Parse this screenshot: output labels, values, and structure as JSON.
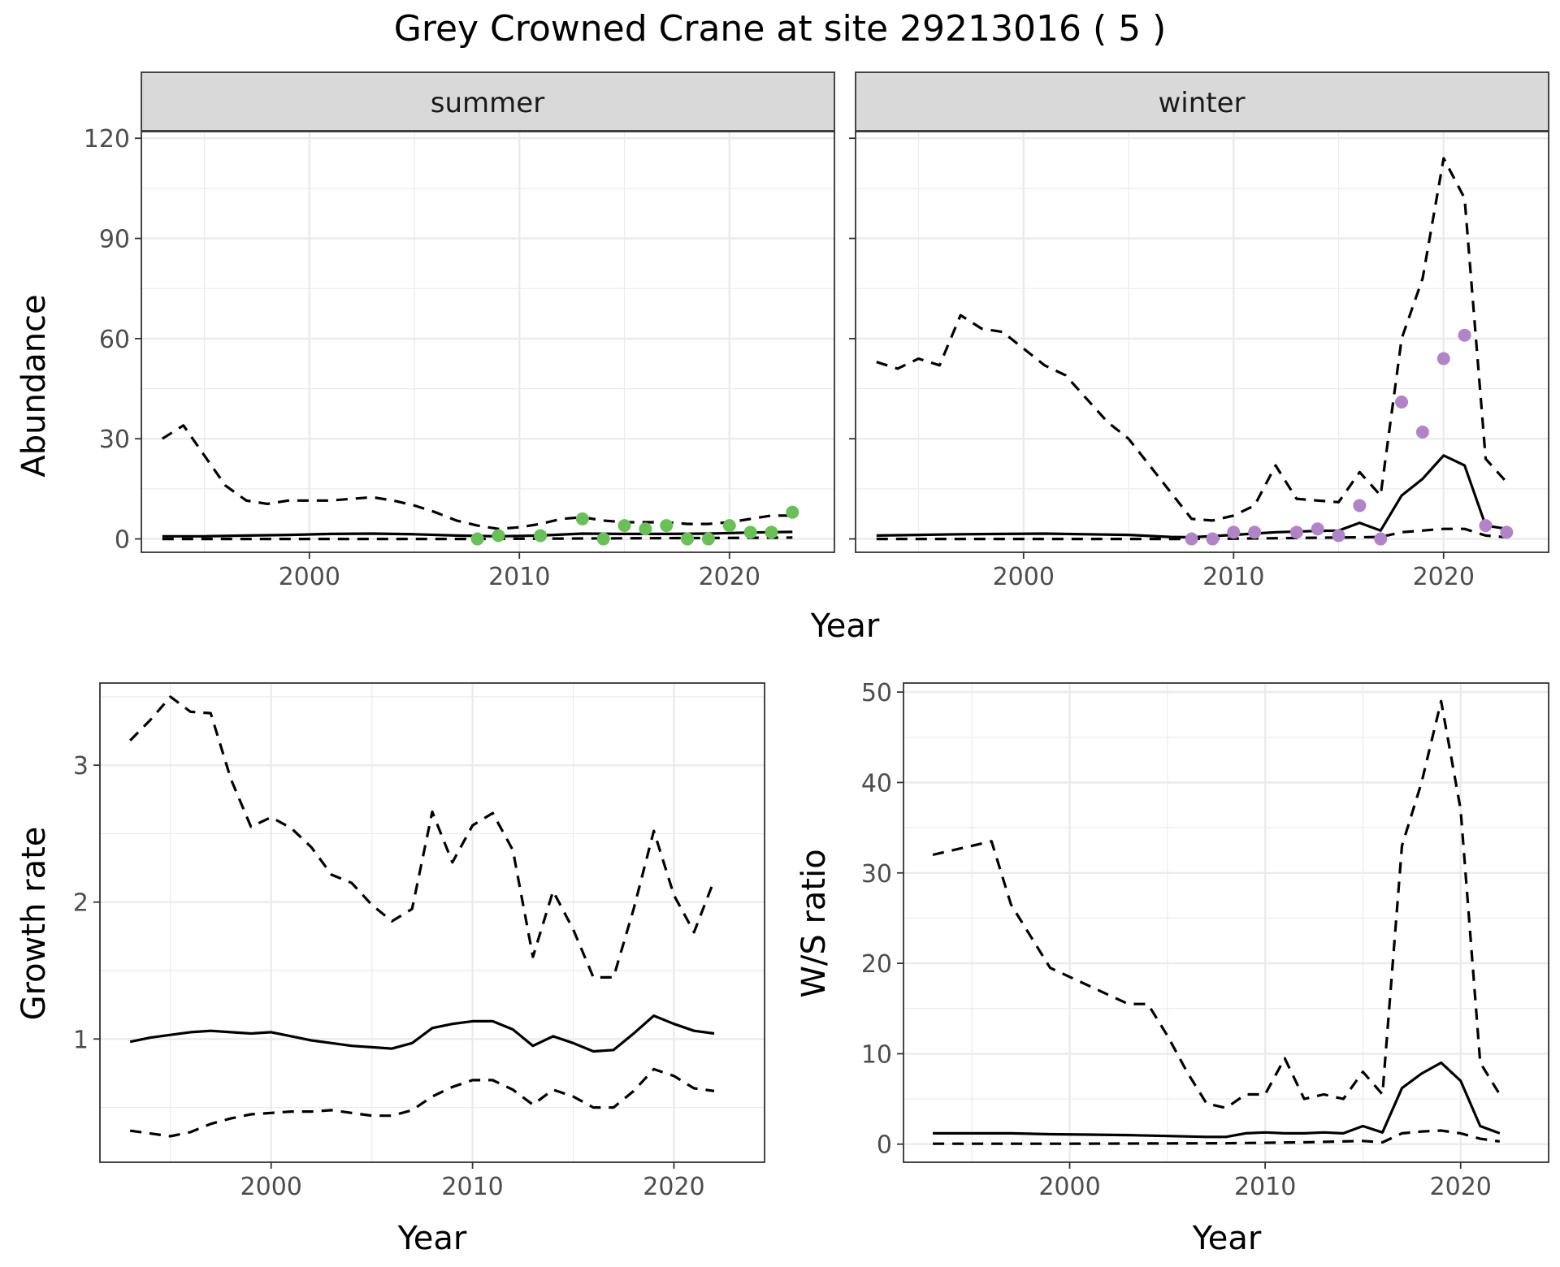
{
  "title": "Grey Crowned Crane at site 29213016 ( 5 )",
  "chart_data": [
    {
      "type": "line",
      "facet_title": "summer",
      "xlabel": "Year",
      "ylabel": "Abundance",
      "xlim": [
        1992,
        2025
      ],
      "ylim": [
        -4,
        122
      ],
      "x_ticks": [
        2000,
        2010,
        2020
      ],
      "y_ticks": [
        0,
        30,
        60,
        90,
        120
      ],
      "x_tick_labels": [
        "2000",
        "2010",
        "2020"
      ],
      "y_tick_labels": [
        "0",
        "30",
        "60",
        "90",
        "120"
      ],
      "grid": true,
      "point_color": "#6abf59",
      "series": [
        {
          "line": "solid",
          "x": [
            1993,
            1995,
            1997,
            1999,
            2001,
            2003,
            2005,
            2007,
            2009,
            2011,
            2013,
            2015,
            2017,
            2019,
            2021,
            2023
          ],
          "y": [
            0.8,
            0.8,
            1,
            1.2,
            1.5,
            1.6,
            1.4,
            1.0,
            0.8,
            1.0,
            1.6,
            1.5,
            1.5,
            1.6,
            1.9,
            2.1
          ]
        },
        {
          "line": "dashed",
          "x": [
            1993,
            1994,
            1995,
            1996,
            1997,
            1998,
            1999,
            2000,
            2001,
            2002,
            2003,
            2004,
            2005,
            2006,
            2007,
            2008,
            2009,
            2010,
            2011,
            2012,
            2013,
            2014,
            2015,
            2016,
            2017,
            2018,
            2019,
            2020,
            2021,
            2022,
            2023
          ],
          "y": [
            30,
            34,
            25,
            16,
            11.5,
            10.5,
            11.5,
            11.5,
            11.5,
            12,
            12.5,
            11.5,
            10,
            8,
            5.5,
            4,
            3,
            3.5,
            4.5,
            6,
            6.5,
            5.5,
            5,
            5,
            5,
            4.5,
            4.5,
            5,
            6,
            7,
            7
          ]
        },
        {
          "line": "dashed",
          "x": [
            1993,
            2000,
            2008,
            2012,
            2016,
            2020,
            2023
          ],
          "y": [
            0,
            0,
            0,
            0.1,
            0.2,
            0.3,
            0.4
          ]
        },
        {
          "line": "points",
          "x": [
            2008,
            2009,
            2011,
            2013,
            2014,
            2015,
            2016,
            2017,
            2018,
            2019,
            2020,
            2021,
            2022,
            2023
          ],
          "y": [
            0,
            1,
            1,
            6,
            0,
            4,
            3,
            4,
            0,
            0,
            4,
            2,
            2,
            8
          ]
        }
      ]
    },
    {
      "type": "line",
      "facet_title": "winter",
      "xlabel": "Year",
      "ylabel": "Abundance",
      "xlim": [
        1992,
        2025
      ],
      "ylim": [
        -4,
        122
      ],
      "x_ticks": [
        2000,
        2010,
        2020
      ],
      "y_ticks": [
        0,
        30,
        60,
        90,
        120
      ],
      "x_tick_labels": [
        "2000",
        "2010",
        "2020"
      ],
      "y_tick_labels": [
        "0",
        "30",
        "60",
        "90",
        "120"
      ],
      "grid": true,
      "point_color": "#b084c7",
      "series": [
        {
          "line": "solid",
          "x": [
            1993,
            1995,
            1997,
            1999,
            2001,
            2003,
            2005,
            2007,
            2008,
            2010,
            2012,
            2014,
            2015,
            2016,
            2017,
            2018,
            2019,
            2020,
            2021,
            2022,
            2023
          ],
          "y": [
            1,
            1.2,
            1.4,
            1.5,
            1.6,
            1.4,
            1.2,
            0.6,
            0.5,
            1.2,
            2,
            2.4,
            2.5,
            4.8,
            2.5,
            13,
            18,
            25,
            22,
            4,
            3
          ]
        },
        {
          "line": "dashed",
          "x": [
            1993,
            1994,
            1995,
            1996,
            1997,
            1998,
            1999,
            2000,
            2001,
            2002,
            2003,
            2004,
            2005,
            2006,
            2007,
            2008,
            2009,
            2010,
            2011,
            2012,
            2013,
            2014,
            2015,
            2016,
            2017,
            2018,
            2019,
            2020,
            2021,
            2022,
            2023
          ],
          "y": [
            53,
            51,
            54,
            52,
            67,
            63,
            62,
            57,
            52,
            49,
            42,
            35,
            30,
            22,
            14,
            6,
            5.5,
            7,
            10,
            22,
            12,
            11.5,
            11,
            20,
            13,
            60,
            78,
            114,
            102,
            24,
            17
          ]
        },
        {
          "line": "dashed",
          "x": [
            1993,
            2000,
            2008,
            2012,
            2016,
            2017,
            2018,
            2020,
            2021,
            2022,
            2023
          ],
          "y": [
            0,
            0,
            0,
            0.2,
            0.5,
            0.6,
            2,
            3,
            3,
            1,
            0.5
          ]
        },
        {
          "line": "points",
          "x": [
            2008,
            2009,
            2010,
            2011,
            2013,
            2014,
            2015,
            2016,
            2017,
            2018,
            2019,
            2020,
            2021,
            2022,
            2023
          ],
          "y": [
            0,
            0,
            2,
            2,
            2,
            3,
            1,
            10,
            0,
            41,
            32,
            54,
            61,
            4,
            2
          ]
        }
      ]
    },
    {
      "type": "line",
      "xlabel": "Year",
      "ylabel": "Growth rate",
      "xlim": [
        1991.5,
        2024.5
      ],
      "ylim": [
        0.1,
        3.6
      ],
      "x_ticks": [
        2000,
        2010,
        2020
      ],
      "y_ticks": [
        1,
        2,
        3
      ],
      "x_tick_labels": [
        "2000",
        "2010",
        "2020"
      ],
      "y_tick_labels": [
        "1",
        "2",
        "3"
      ],
      "grid": true,
      "series": [
        {
          "line": "solid",
          "x": [
            1993,
            1994,
            1995,
            1996,
            1997,
            1998,
            1999,
            2000,
            2001,
            2002,
            2003,
            2004,
            2005,
            2006,
            2007,
            2008,
            2009,
            2010,
            2011,
            2012,
            2013,
            2014,
            2015,
            2016,
            2017,
            2018,
            2019,
            2020,
            2021,
            2022
          ],
          "y": [
            0.98,
            1.01,
            1.03,
            1.05,
            1.06,
            1.05,
            1.04,
            1.05,
            1.02,
            0.99,
            0.97,
            0.95,
            0.94,
            0.93,
            0.97,
            1.08,
            1.11,
            1.13,
            1.13,
            1.07,
            0.95,
            1.02,
            0.97,
            0.91,
            0.92,
            1.04,
            1.17,
            1.11,
            1.06,
            1.04
          ]
        },
        {
          "line": "dashed",
          "x": [
            1993,
            1994,
            1995,
            1996,
            1997,
            1998,
            1999,
            2000,
            2001,
            2002,
            2003,
            2004,
            2005,
            2006,
            2007,
            2008,
            2009,
            2010,
            2011,
            2012,
            2013,
            2014,
            2015,
            2016,
            2017,
            2018,
            2019,
            2020,
            2021,
            2022
          ],
          "y": [
            3.18,
            3.33,
            3.5,
            3.39,
            3.38,
            2.9,
            2.55,
            2.62,
            2.54,
            2.4,
            2.2,
            2.14,
            1.98,
            1.86,
            1.95,
            2.66,
            2.29,
            2.56,
            2.65,
            2.38,
            1.6,
            2.08,
            1.8,
            1.45,
            1.45,
            1.95,
            2.52,
            2.05,
            1.78,
            2.16
          ]
        },
        {
          "line": "dashed",
          "x": [
            1993,
            1994,
            1995,
            1996,
            1997,
            1998,
            1999,
            2000,
            2001,
            2002,
            2003,
            2004,
            2005,
            2006,
            2007,
            2008,
            2009,
            2010,
            2011,
            2012,
            2013,
            2014,
            2015,
            2016,
            2017,
            2018,
            2019,
            2020,
            2021,
            2022
          ],
          "y": [
            0.33,
            0.31,
            0.29,
            0.32,
            0.38,
            0.42,
            0.45,
            0.46,
            0.47,
            0.47,
            0.48,
            0.46,
            0.44,
            0.44,
            0.48,
            0.58,
            0.65,
            0.7,
            0.7,
            0.63,
            0.52,
            0.63,
            0.58,
            0.5,
            0.5,
            0.62,
            0.78,
            0.73,
            0.64,
            0.62
          ]
        }
      ]
    },
    {
      "type": "line",
      "xlabel": "Year",
      "ylabel": "W/S ratio",
      "xlim": [
        1991.5,
        2024.5
      ],
      "ylim": [
        -2,
        51
      ],
      "x_ticks": [
        2000,
        2010,
        2020
      ],
      "y_ticks": [
        0,
        10,
        20,
        30,
        40,
        50
      ],
      "x_tick_labels": [
        "2000",
        "2010",
        "2020"
      ],
      "y_tick_labels": [
        "0",
        "10",
        "20",
        "30",
        "40",
        "50"
      ],
      "grid": true,
      "series": [
        {
          "line": "solid",
          "x": [
            1993,
            1995,
            1997,
            1999,
            2001,
            2003,
            2005,
            2007,
            2008,
            2009,
            2010,
            2011,
            2012,
            2013,
            2014,
            2015,
            2016,
            2017,
            2018,
            2019,
            2020,
            2021,
            2022
          ],
          "y": [
            1.2,
            1.2,
            1.2,
            1.1,
            1.05,
            1.0,
            0.9,
            0.8,
            0.8,
            1.2,
            1.3,
            1.2,
            1.2,
            1.3,
            1.2,
            2.0,
            1.3,
            6.2,
            7.8,
            9,
            7,
            2,
            1.2
          ]
        },
        {
          "line": "dashed",
          "x": [
            1993,
            1994,
            1995,
            1996,
            1997,
            1998,
            1999,
            2000,
            2001,
            2002,
            2003,
            2004,
            2005,
            2006,
            2007,
            2008,
            2009,
            2010,
            2011,
            2012,
            2013,
            2014,
            2015,
            2016,
            2017,
            2018,
            2019,
            2020,
            2021,
            2022
          ],
          "y": [
            32,
            32.5,
            33,
            33.5,
            26.5,
            23,
            19.5,
            18.5,
            17.5,
            16.5,
            15.5,
            15.5,
            12,
            8,
            4.5,
            4,
            5.5,
            5.5,
            9.5,
            5,
            5.5,
            5,
            8,
            5.5,
            33,
            40,
            49,
            37,
            9,
            5.5
          ]
        },
        {
          "line": "dashed",
          "x": [
            1993,
            2000,
            2008,
            2012,
            2015,
            2016,
            2017,
            2018,
            2019,
            2020,
            2021,
            2022
          ],
          "y": [
            0.05,
            0.05,
            0.1,
            0.2,
            0.35,
            0.2,
            1.2,
            1.4,
            1.5,
            1.2,
            0.6,
            0.3
          ]
        }
      ]
    }
  ]
}
